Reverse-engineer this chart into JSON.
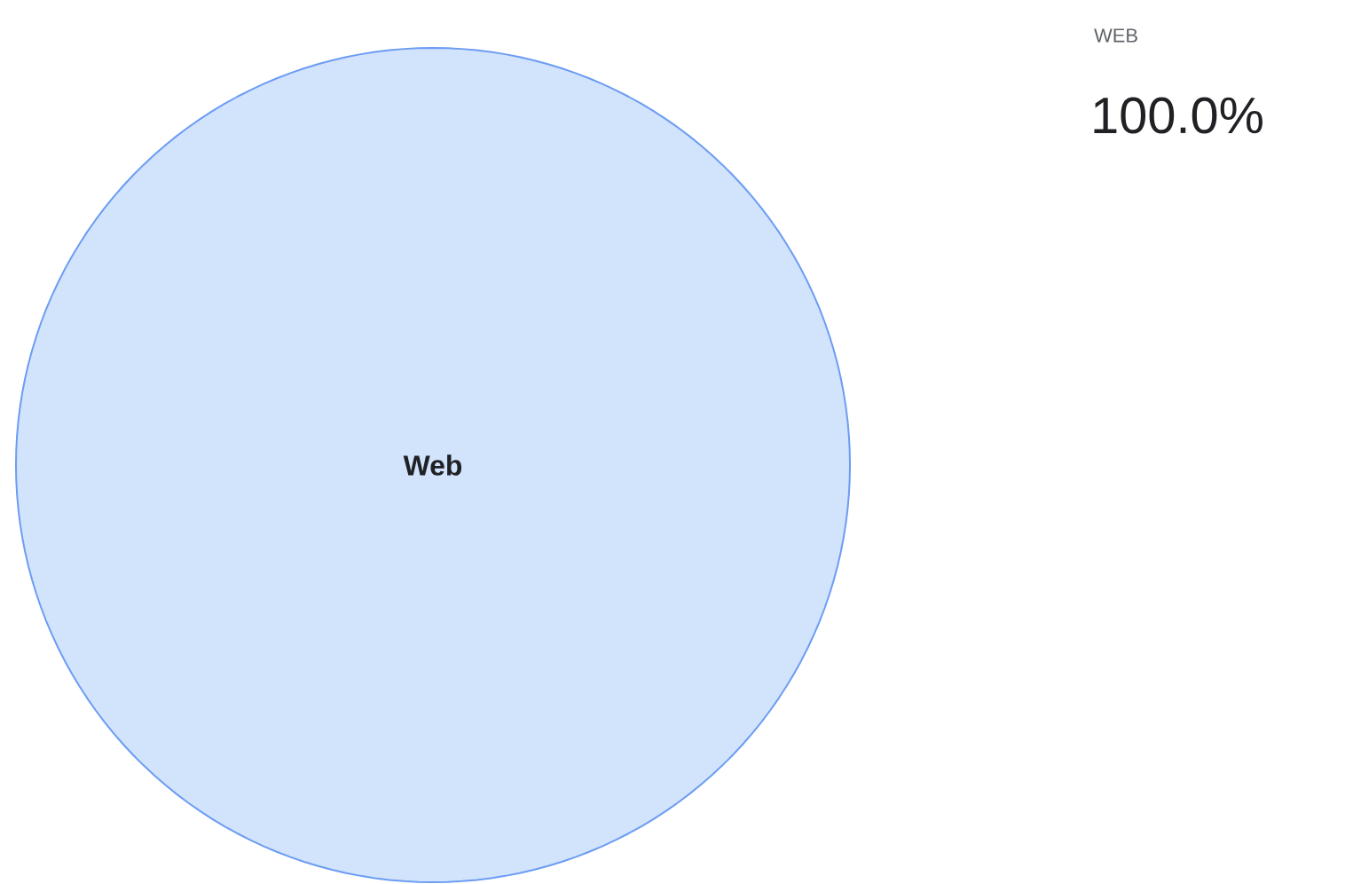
{
  "chart_data": {
    "type": "pie",
    "categories": [
      "Web"
    ],
    "values": [
      100
    ],
    "colors": [
      "#d2e3fc"
    ],
    "value_labels": [
      "100.0%"
    ],
    "annotations": [
      "WEB"
    ]
  }
}
